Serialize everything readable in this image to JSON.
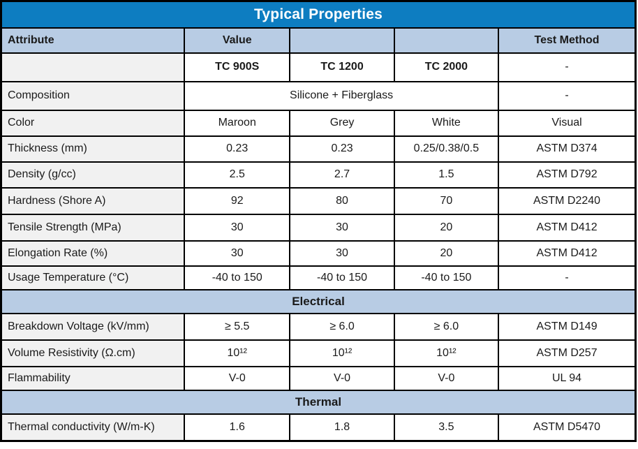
{
  "title": "Typical Properties",
  "colors": {
    "title_bar": "#0d7dc1",
    "band": "#b8cce4",
    "attribute_column": "#f1f1f1",
    "border": "#000000",
    "title_text": "#ffffff"
  },
  "rows": [
    {
      "type": "header",
      "label": "Attribute",
      "value_header": "Value",
      "blank1": "",
      "blank2": "",
      "test": "Test Method"
    },
    {
      "type": "grades",
      "label": "",
      "values": [
        "TC 900S",
        "TC 1200",
        "TC 2000"
      ],
      "test": "-"
    },
    {
      "type": "merged",
      "label": "Composition",
      "value": "Silicone + Fiberglass",
      "test": "-"
    },
    {
      "type": "data",
      "label": "Color",
      "values": [
        "Maroon",
        "Grey",
        "White"
      ],
      "test": "Visual"
    },
    {
      "type": "data",
      "label": "Thickness (mm)",
      "values": [
        "0.23",
        "0.23",
        "0.25/0.38/0.5"
      ],
      "test": "ASTM D374"
    },
    {
      "type": "data",
      "label": "Density (g/cc)",
      "values": [
        "2.5",
        "2.7",
        "1.5"
      ],
      "test": "ASTM D792"
    },
    {
      "type": "data",
      "label": "Hardness (Shore A)",
      "values": [
        "92",
        "80",
        "70"
      ],
      "test": "ASTM D2240"
    },
    {
      "type": "data",
      "label": "Tensile Strength (MPa)",
      "values": [
        "30",
        "30",
        "20"
      ],
      "test": "ASTM D412"
    },
    {
      "type": "data",
      "label": "Elongation Rate (%)",
      "values": [
        "30",
        "30",
        "20"
      ],
      "test": "ASTM D412"
    },
    {
      "type": "data",
      "label": "Usage Temperature (°C)",
      "values": [
        "-40 to 150",
        "-40 to 150",
        "-40 to 150"
      ],
      "test": "-"
    },
    {
      "type": "section",
      "label": "Electrical"
    },
    {
      "type": "data",
      "label": "Breakdown Voltage (kV/mm)",
      "values": [
        "≥ 5.5",
        "≥ 6.0",
        "≥ 6.0"
      ],
      "test": "ASTM D149"
    },
    {
      "type": "data",
      "label": "Volume Resistivity (Ω.cm)",
      "values": [
        "10¹²",
        "10¹²",
        "10¹²"
      ],
      "test": "ASTM D257"
    },
    {
      "type": "data",
      "label": "Flammability",
      "values": [
        "V-0",
        "V-0",
        "V-0"
      ],
      "test": "UL 94"
    },
    {
      "type": "section",
      "label": "Thermal"
    },
    {
      "type": "data",
      "label": "Thermal conductivity (W/m-K)",
      "values": [
        "1.6",
        "1.8",
        "3.5"
      ],
      "test": "ASTM D5470"
    }
  ]
}
